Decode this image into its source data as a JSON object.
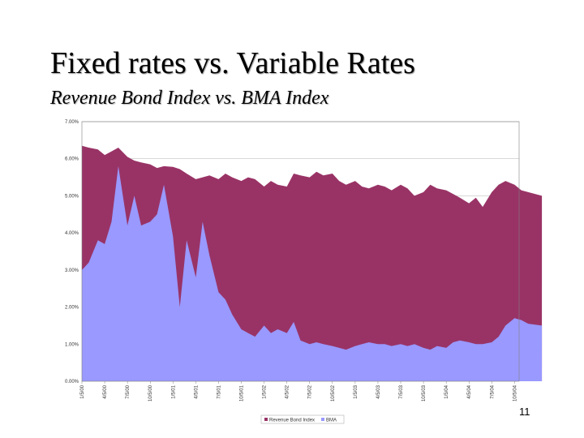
{
  "slide": {
    "title": "Fixed rates vs. Variable Rates",
    "subtitle": "Revenue Bond Index vs. BMA Index",
    "number": "11"
  },
  "colors": {
    "revenue_bond": "#993366",
    "bma": "#9999ff",
    "grid": "#c0c0c0",
    "frame": "#808080"
  },
  "chart_data": {
    "type": "area",
    "title": "",
    "xlabel": "",
    "ylabel": "",
    "ylim": [
      0,
      7
    ],
    "grid": true,
    "legend_position": "bottom",
    "y_ticks": [
      "0.00%",
      "1.00%",
      "2.00%",
      "3.00%",
      "4.00%",
      "5.00%",
      "6.00%",
      "7.00%"
    ],
    "x_ticks": [
      "1/5/00",
      "4/5/00",
      "7/5/00",
      "10/5/00",
      "1/5/01",
      "4/5/01",
      "7/5/01",
      "10/5/01",
      "1/5/02",
      "4/5/02",
      "7/5/02",
      "10/5/02",
      "1/5/03",
      "4/5/03",
      "7/5/03",
      "10/5/03",
      "1/5/04",
      "4/5/04",
      "7/5/04",
      "10/5/04"
    ],
    "x": [
      0,
      0.3,
      0.7,
      1,
      1.3,
      1.6,
      2,
      2.3,
      2.6,
      3,
      3.3,
      3.6,
      4,
      4.3,
      4.6,
      5,
      5.3,
      5.6,
      6,
      6.3,
      6.6,
      7,
      7.3,
      7.6,
      8,
      8.3,
      8.6,
      9,
      9.3,
      9.6,
      10,
      10.3,
      10.6,
      11,
      11.3,
      11.6,
      12,
      12.3,
      12.6,
      13,
      13.3,
      13.6,
      14,
      14.3,
      14.6,
      15,
      15.3,
      15.6,
      16,
      16.3,
      16.6,
      17,
      17.3,
      17.6,
      18,
      18.3,
      18.6,
      19,
      19.3,
      19.6,
      20.2
    ],
    "series": [
      {
        "name": "Revenue Bond Index",
        "values": [
          6.35,
          6.3,
          6.25,
          6.1,
          6.2,
          6.3,
          6.05,
          5.95,
          5.9,
          5.85,
          5.75,
          5.8,
          5.78,
          5.72,
          5.6,
          5.45,
          5.5,
          5.55,
          5.45,
          5.6,
          5.5,
          5.4,
          5.5,
          5.45,
          5.25,
          5.4,
          5.3,
          5.25,
          5.6,
          5.55,
          5.5,
          5.65,
          5.55,
          5.6,
          5.4,
          5.3,
          5.4,
          5.25,
          5.2,
          5.3,
          5.25,
          5.15,
          5.3,
          5.2,
          5.0,
          5.1,
          5.3,
          5.2,
          5.15,
          5.05,
          4.95,
          4.8,
          4.95,
          4.7,
          5.1,
          5.3,
          5.4,
          5.3,
          5.15,
          5.1,
          5.0
        ]
      },
      {
        "name": "BMA",
        "values": [
          3.0,
          3.2,
          3.8,
          3.7,
          4.3,
          5.8,
          4.2,
          5.0,
          4.2,
          4.3,
          4.5,
          5.3,
          3.9,
          2.0,
          3.8,
          2.8,
          4.3,
          3.4,
          2.4,
          2.2,
          1.8,
          1.4,
          1.3,
          1.2,
          1.5,
          1.3,
          1.4,
          1.3,
          1.6,
          1.1,
          1.0,
          1.05,
          1.0,
          0.95,
          0.9,
          0.85,
          0.95,
          1.0,
          1.05,
          1.0,
          1.0,
          0.95,
          1.0,
          0.95,
          1.0,
          0.9,
          0.85,
          0.95,
          0.9,
          1.05,
          1.1,
          1.05,
          1.0,
          1.0,
          1.05,
          1.2,
          1.5,
          1.7,
          1.65,
          1.55,
          1.5
        ]
      }
    ]
  }
}
